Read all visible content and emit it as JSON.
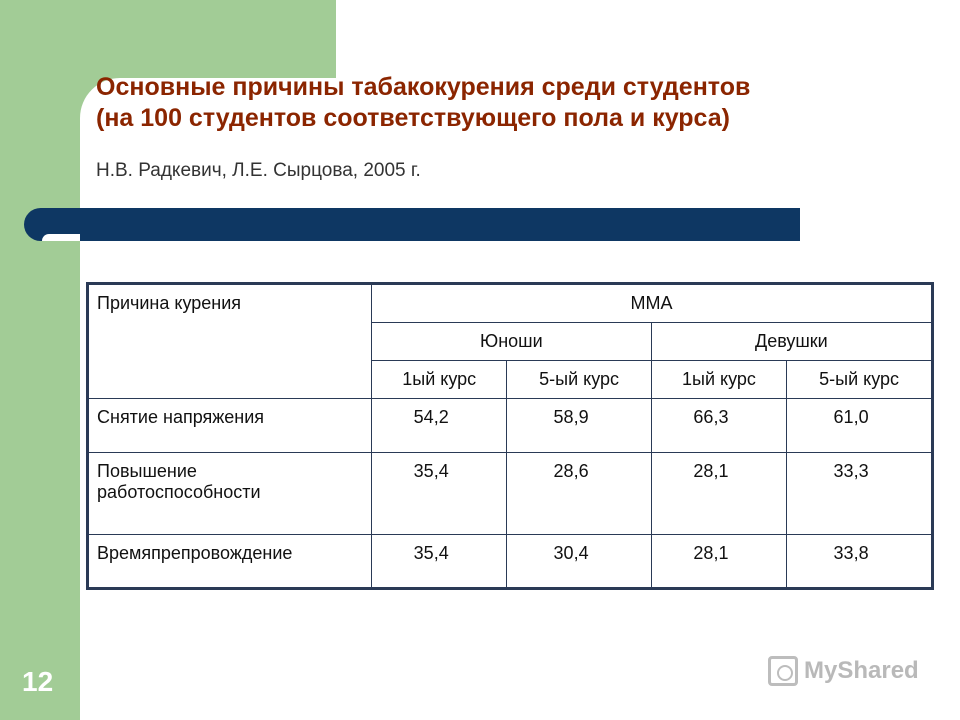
{
  "slide": {
    "title_line1": "Основные причины табакокурения среди студентов",
    "title_line2": "(на 100 студентов соответствующего пола и курса)",
    "subtitle": "Н.В. Радкевич, Л.Е. Сырцова, 2005 г.",
    "number": "12"
  },
  "table": {
    "header": {
      "label": "Причина курения",
      "group": "ММА",
      "genders": [
        "Юноши",
        "Девушки"
      ],
      "courses": [
        "1ый курс",
        "5-ый курс",
        "1ый курс",
        "5-ый курс"
      ]
    },
    "rows": [
      {
        "label": "Снятие напряжения",
        "values": [
          "54,2",
          "58,9",
          "66,3",
          "61,0"
        ]
      },
      {
        "label": "Повышение работоспособности",
        "values": [
          "35,4",
          "28,6",
          "28,1",
          "33,3"
        ]
      },
      {
        "label": "Времяпрепровождение",
        "values": [
          "35,4",
          "30,4",
          "28,1",
          "33,8"
        ]
      }
    ]
  },
  "watermark": {
    "text": "MyShared",
    "icon": "myshared-logo-icon"
  },
  "colors": {
    "green": "#a2cc96",
    "navy": "#0e3763",
    "title": "#8b2500"
  }
}
